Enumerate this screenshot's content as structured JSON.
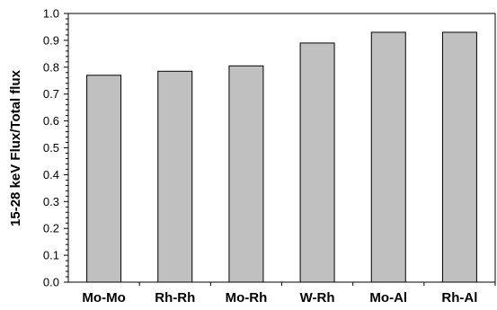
{
  "chart_data": {
    "type": "bar",
    "categories": [
      "Mo-Mo",
      "Rh-Rh",
      "Mo-Rh",
      "W-Rh",
      "Mo-Al",
      "Rh-Al"
    ],
    "values": [
      0.77,
      0.785,
      0.805,
      0.89,
      0.93,
      0.93
    ],
    "title": "",
    "xlabel": "",
    "ylabel": "15-28 keV Flux/Total flux",
    "ylim": [
      0.0,
      1.0
    ],
    "yticks": [
      "0.0",
      "0.1",
      "0.2",
      "0.3",
      "0.4",
      "0.5",
      "0.6",
      "0.7",
      "0.8",
      "0.9",
      "1.0"
    ],
    "grid": false,
    "legend": "none",
    "bar_color": "#c0c0c0",
    "bar_edge_color": "#000000"
  }
}
